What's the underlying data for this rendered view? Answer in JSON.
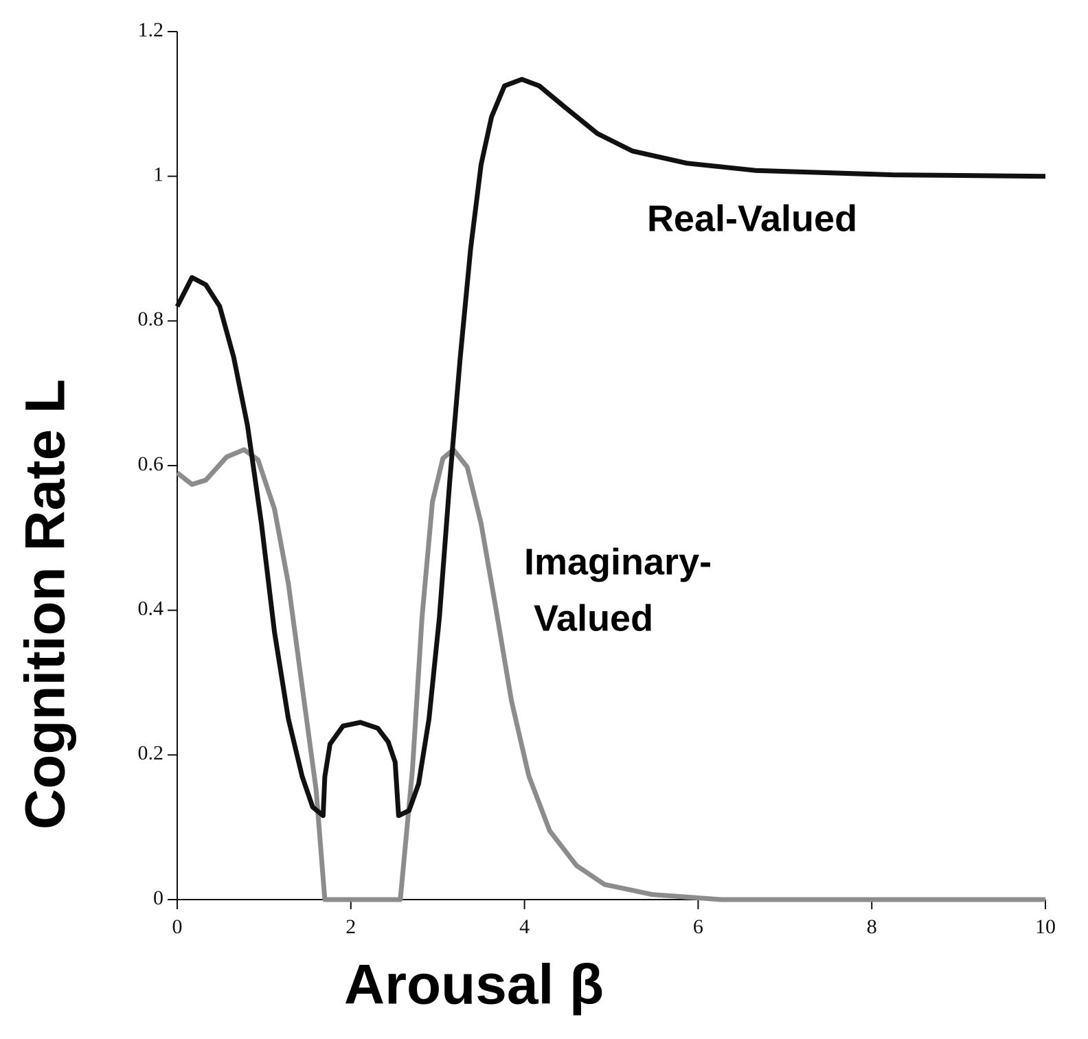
{
  "chart_data": {
    "type": "line",
    "x_label": "Arousal β",
    "y_label": "Cognition Rate L",
    "xlim": [
      0,
      10
    ],
    "xticks": [
      0,
      2,
      4,
      6,
      8,
      10
    ],
    "ylim": [
      0,
      1.2
    ],
    "yticks": [
      0,
      0.2,
      0.4,
      0.6,
      0.8,
      1,
      1.2
    ],
    "grid": false,
    "annotations": [
      {
        "lines": [
          "Real-Valued"
        ]
      },
      {
        "lines": [
          "Imaginary-",
          "Valued"
        ]
      }
    ],
    "series": [
      {
        "color": "#111111",
        "x": [
          0,
          0.17,
          0.33,
          0.49,
          0.65,
          0.81,
          0.97,
          1.12,
          1.28,
          1.44,
          1.56,
          1.68,
          1.7,
          1.76,
          1.91,
          2.11,
          2.31,
          2.43,
          2.51,
          2.55,
          2.67,
          2.78,
          2.9,
          3.02,
          3.14,
          3.26,
          3.38,
          3.5,
          3.62,
          3.77,
          3.97,
          4.17,
          4.45,
          4.84,
          5.24,
          5.87,
          6.66,
          8.24,
          10
        ],
        "values": [
          0.82,
          0.86,
          0.85,
          0.82,
          0.75,
          0.655,
          0.52,
          0.37,
          0.25,
          0.17,
          0.128,
          0.116,
          0.17,
          0.215,
          0.24,
          0.245,
          0.237,
          0.218,
          0.19,
          0.116,
          0.123,
          0.16,
          0.25,
          0.39,
          0.58,
          0.75,
          0.9,
          1.016,
          1.082,
          1.125,
          1.134,
          1.125,
          1.097,
          1.059,
          1.035,
          1.018,
          1.008,
          1.002,
          1.0
        ]
      },
      {
        "color": "#8c8c8c",
        "x": [
          0,
          0.17,
          0.33,
          0.57,
          0.77,
          0.93,
          1.12,
          1.28,
          1.44,
          1.6,
          1.7,
          2.57,
          2.71,
          2.82,
          2.94,
          3.06,
          3.18,
          3.34,
          3.5,
          3.66,
          3.85,
          4.05,
          4.29,
          4.6,
          4.92,
          5.47,
          6.27,
          10
        ],
        "values": [
          0.59,
          0.574,
          0.58,
          0.612,
          0.622,
          0.608,
          0.54,
          0.437,
          0.294,
          0.152,
          0,
          0,
          0.18,
          0.39,
          0.55,
          0.61,
          0.622,
          0.598,
          0.52,
          0.41,
          0.275,
          0.171,
          0.095,
          0.047,
          0.021,
          0.007,
          0,
          0
        ]
      }
    ]
  }
}
